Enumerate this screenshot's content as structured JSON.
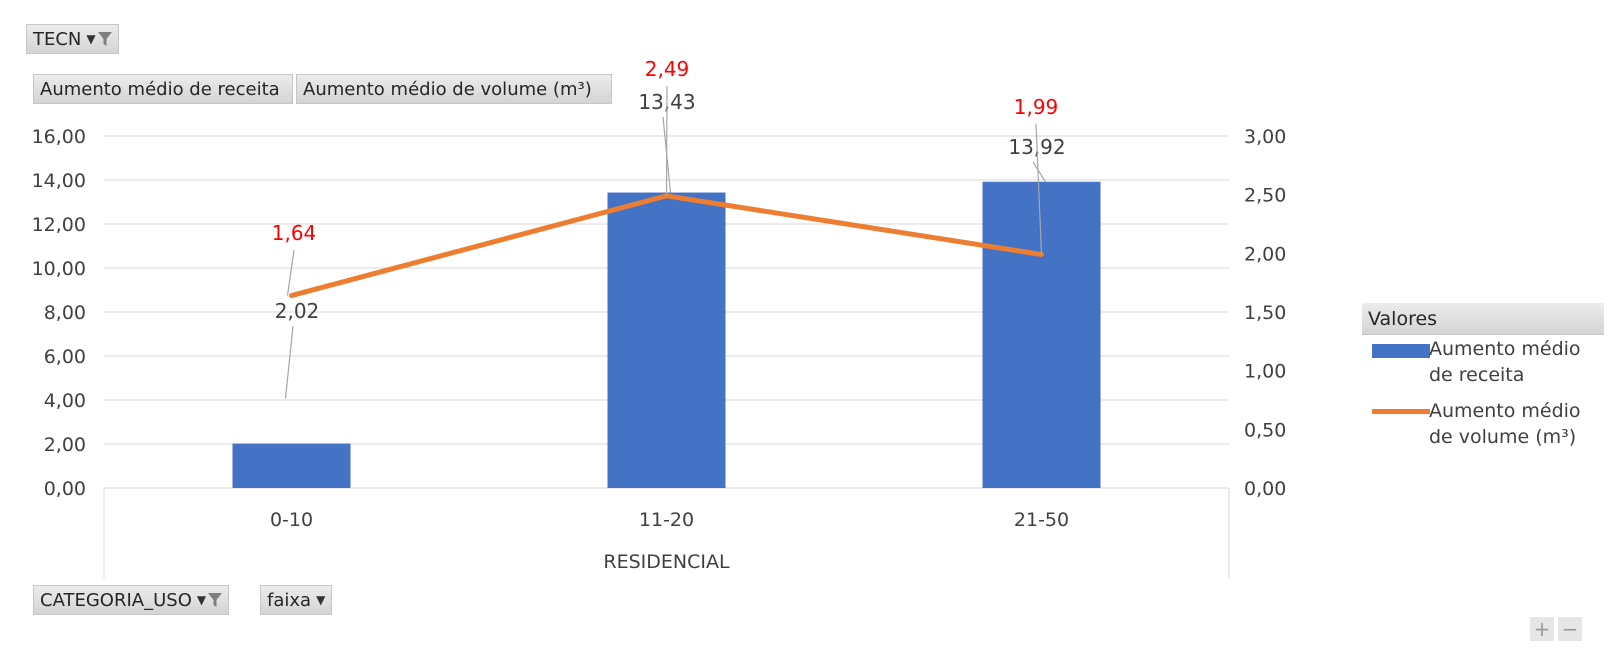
{
  "filters": {
    "top_field": "TECN",
    "value_fields": [
      "Aumento médio de receita",
      "Aumento médio de volume (m³)"
    ],
    "row_fields": [
      "CATEGORIA_USO",
      "faixa"
    ]
  },
  "legend": {
    "title": "Valores",
    "entries": [
      {
        "name": "Aumento médio de receita",
        "color": "#4472c4",
        "kind": "bar"
      },
      {
        "name": "Aumento médio de volume (m³)",
        "color": "#ed7d31",
        "kind": "line"
      }
    ]
  },
  "colors": {
    "bar": "#4472c4",
    "line": "#ed7d31",
    "line_label": "#ff0000",
    "bar_label": "#404040"
  },
  "icons": {
    "dropdown": "chevron-down-icon",
    "filter": "funnel-icon"
  },
  "zoom": {
    "plus": "+",
    "minus": "−"
  },
  "chart_data": {
    "type": "bar",
    "combo": "bar+line",
    "categories": [
      "0-10",
      "11-20",
      "21-50"
    ],
    "group_label": "RESIDENCIAL",
    "series": [
      {
        "name": "Aumento médio de receita",
        "type": "bar",
        "axis": "left",
        "values": [
          2.02,
          13.43,
          13.92
        ],
        "labels": [
          "2,02",
          "13,43",
          "13,92"
        ]
      },
      {
        "name": "Aumento médio de volume (m³)",
        "type": "line",
        "axis": "right",
        "values": [
          1.64,
          2.49,
          1.99
        ],
        "labels": [
          "1,64",
          "2,49",
          "1,99"
        ]
      }
    ],
    "y_left": {
      "min": 0,
      "max": 16,
      "step": 2,
      "ticks": [
        "0,00",
        "2,00",
        "4,00",
        "6,00",
        "8,00",
        "10,00",
        "12,00",
        "14,00",
        "16,00"
      ]
    },
    "y_right": {
      "min": 0,
      "max": 3,
      "step": 0.5,
      "ticks": [
        "0,00",
        "0,50",
        "1,00",
        "1,50",
        "2,00",
        "2,50",
        "3,00"
      ]
    },
    "grid": true,
    "legend_position": "right"
  }
}
